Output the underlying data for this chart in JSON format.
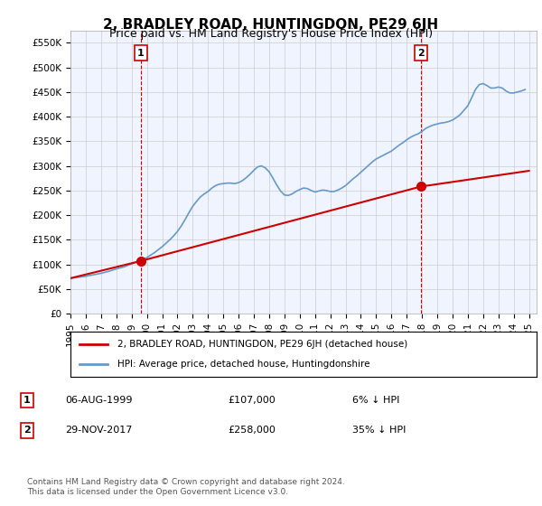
{
  "title": "2, BRADLEY ROAD, HUNTINGDON, PE29 6JH",
  "subtitle": "Price paid vs. HM Land Registry's House Price Index (HPI)",
  "title_fontsize": 11,
  "subtitle_fontsize": 9,
  "bg_color": "#eef2ff",
  "plot_bg_color": "#f0f4ff",
  "grid_color": "#cccccc",
  "sale1_date": 1999.6,
  "sale1_price": 107000,
  "sale1_label": "1",
  "sale2_date": 2017.92,
  "sale2_price": 258000,
  "sale2_label": "2",
  "hpi_color": "#6699cc",
  "price_color": "#cc0000",
  "marker_color": "#cc0000",
  "dashed_color": "#cc0000",
  "ylim": [
    0,
    575000
  ],
  "xlim_start": 1995.0,
  "xlim_end": 2025.5,
  "yticks": [
    0,
    50000,
    100000,
    150000,
    200000,
    250000,
    300000,
    350000,
    400000,
    450000,
    500000,
    550000
  ],
  "ytick_labels": [
    "£0",
    "£50K",
    "£100K",
    "£150K",
    "£200K",
    "£250K",
    "£300K",
    "£350K",
    "£400K",
    "£450K",
    "£500K",
    "£550K"
  ],
  "xticks": [
    1995,
    1996,
    1997,
    1998,
    1999,
    2000,
    2001,
    2002,
    2003,
    2004,
    2005,
    2006,
    2007,
    2008,
    2009,
    2010,
    2011,
    2012,
    2013,
    2014,
    2015,
    2016,
    2017,
    2018,
    2019,
    2020,
    2021,
    2022,
    2023,
    2024,
    2025
  ],
  "legend_label1": "2, BRADLEY ROAD, HUNTINGDON, PE29 6JH (detached house)",
  "legend_label2": "HPI: Average price, detached house, Huntingdonshire",
  "table_row1": [
    "1",
    "06-AUG-1999",
    "£107,000",
    "6% ↓ HPI"
  ],
  "table_row2": [
    "2",
    "29-NOV-2017",
    "£258,000",
    "35% ↓ HPI"
  ],
  "footnote": "Contains HM Land Registry data © Crown copyright and database right 2024.\nThis data is licensed under the Open Government Licence v3.0.",
  "hpi_years": [
    1995.0,
    1995.25,
    1995.5,
    1995.75,
    1996.0,
    1996.25,
    1996.5,
    1996.75,
    1997.0,
    1997.25,
    1997.5,
    1997.75,
    1998.0,
    1998.25,
    1998.5,
    1998.75,
    1999.0,
    1999.25,
    1999.5,
    1999.75,
    2000.0,
    2000.25,
    2000.5,
    2000.75,
    2001.0,
    2001.25,
    2001.5,
    2001.75,
    2002.0,
    2002.25,
    2002.5,
    2002.75,
    2003.0,
    2003.25,
    2003.5,
    2003.75,
    2004.0,
    2004.25,
    2004.5,
    2004.75,
    2005.0,
    2005.25,
    2005.5,
    2005.75,
    2006.0,
    2006.25,
    2006.5,
    2006.75,
    2007.0,
    2007.25,
    2007.5,
    2007.75,
    2008.0,
    2008.25,
    2008.5,
    2008.75,
    2009.0,
    2009.25,
    2009.5,
    2009.75,
    2010.0,
    2010.25,
    2010.5,
    2010.75,
    2011.0,
    2011.25,
    2011.5,
    2011.75,
    2012.0,
    2012.25,
    2012.5,
    2012.75,
    2013.0,
    2013.25,
    2013.5,
    2013.75,
    2014.0,
    2014.25,
    2014.5,
    2014.75,
    2015.0,
    2015.25,
    2015.5,
    2015.75,
    2016.0,
    2016.25,
    2016.5,
    2016.75,
    2017.0,
    2017.25,
    2017.5,
    2017.75,
    2018.0,
    2018.25,
    2018.5,
    2018.75,
    2019.0,
    2019.25,
    2019.5,
    2019.75,
    2020.0,
    2020.25,
    2020.5,
    2020.75,
    2021.0,
    2021.25,
    2021.5,
    2021.75,
    2022.0,
    2022.25,
    2022.5,
    2022.75,
    2023.0,
    2023.25,
    2023.5,
    2023.75,
    2024.0,
    2024.25,
    2024.5,
    2024.75
  ],
  "hpi_values": [
    72000,
    73000,
    74000,
    75000,
    76000,
    77500,
    79000,
    80500,
    82000,
    84000,
    86000,
    88500,
    91000,
    93000,
    95000,
    98000,
    101000,
    104000,
    107000,
    110000,
    114000,
    119000,
    124000,
    130000,
    136000,
    143000,
    150000,
    158000,
    167000,
    178000,
    191000,
    205000,
    218000,
    228000,
    237000,
    243000,
    248000,
    255000,
    260000,
    263000,
    264000,
    265000,
    265000,
    264000,
    266000,
    270000,
    276000,
    283000,
    291000,
    298000,
    300000,
    296000,
    288000,
    275000,
    261000,
    249000,
    241000,
    240000,
    243000,
    248000,
    252000,
    255000,
    254000,
    250000,
    247000,
    249000,
    251000,
    250000,
    248000,
    248000,
    251000,
    255000,
    260000,
    267000,
    274000,
    280000,
    287000,
    294000,
    301000,
    308000,
    314000,
    318000,
    322000,
    326000,
    330000,
    336000,
    342000,
    347000,
    353000,
    358000,
    362000,
    365000,
    370000,
    376000,
    380000,
    383000,
    385000,
    387000,
    388000,
    390000,
    393000,
    398000,
    404000,
    413000,
    422000,
    438000,
    455000,
    465000,
    467000,
    463000,
    458000,
    458000,
    460000,
    458000,
    452000,
    448000,
    448000,
    450000,
    452000,
    455000
  ],
  "price_years": [
    1995.0,
    1999.6,
    2017.92,
    2025.0
  ],
  "price_values": [
    72000,
    107000,
    258000,
    290000
  ]
}
